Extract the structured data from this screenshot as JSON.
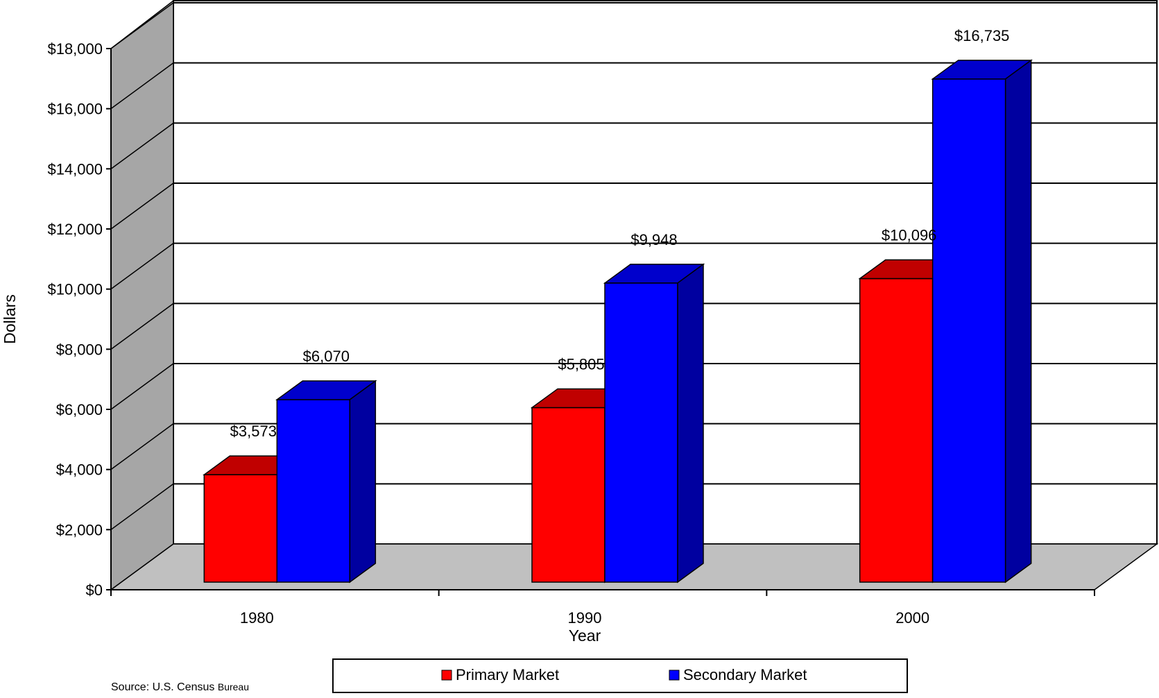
{
  "chart_data": {
    "type": "bar",
    "title": "",
    "xlabel": "Year",
    "ylabel": "Dollars",
    "categories": [
      "1980",
      "1990",
      "2000"
    ],
    "series": [
      {
        "name": "Primary Market",
        "values": [
          3573,
          5805,
          10096
        ],
        "labels": [
          "$3,573",
          "$5,805",
          "$10,096"
        ]
      },
      {
        "name": "Secondary Market",
        "values": [
          6070,
          9948,
          16735
        ],
        "labels": [
          "$6,070",
          "$9,948",
          "$16,735"
        ]
      }
    ],
    "ylim": [
      0,
      18000
    ],
    "yticks": [
      0,
      2000,
      4000,
      6000,
      8000,
      10000,
      12000,
      14000,
      16000,
      18000
    ],
    "ytick_labels": [
      "$0",
      "$2,000",
      "$4,000",
      "$6,000",
      "$8,000",
      "$10,000",
      "$12,000",
      "$14,000",
      "$16,000",
      "$18,000"
    ],
    "grid": true,
    "legend_position": "bottom",
    "style": "3d-column"
  },
  "colors": {
    "primary_front": "#ff0000",
    "primary_top": "#c00000",
    "primary_side": "#a00000",
    "secondary_front": "#0000ff",
    "secondary_top": "#0000cc",
    "secondary_side": "#0000a0",
    "back_wall": "#ffffff",
    "side_wall": "#a6a6a6",
    "floor": "#c0c0c0"
  },
  "source_note": {
    "prefix": "Source: U.S. Census",
    "suffix": "Bureau"
  }
}
